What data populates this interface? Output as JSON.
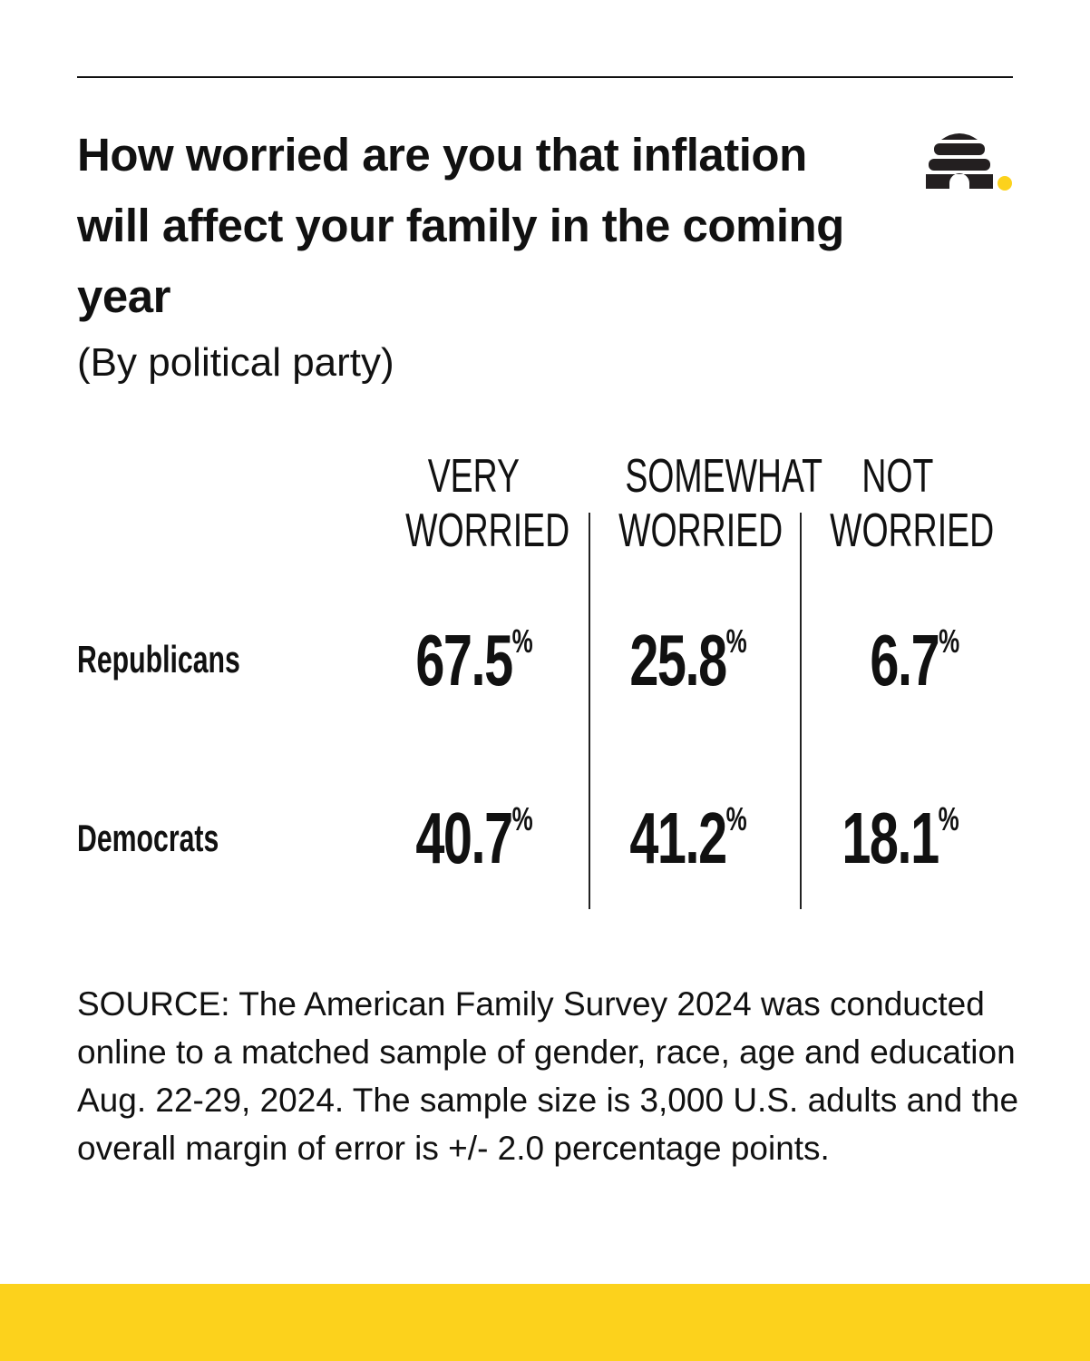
{
  "header": {
    "title": "How worried are you that inflation will affect your family in the coming year",
    "subtitle": "(By political party)",
    "logo": "beehive-icon"
  },
  "chart_data": {
    "type": "table",
    "title": "How worried are you that inflation will affect your family in the coming year",
    "subtitle": "(By political party)",
    "columns": [
      {
        "line1": "VERY",
        "line2": "WORRIED"
      },
      {
        "line1": "SOMEWHAT",
        "line2": "WORRIED"
      },
      {
        "line1": "NOT",
        "line2": "WORRIED"
      }
    ],
    "rows": [
      {
        "label": "Republicans",
        "values": [
          "67.5",
          "25.8",
          "6.7"
        ]
      },
      {
        "label": "Democrats",
        "values": [
          "40.7",
          "41.2",
          "18.1"
        ]
      }
    ],
    "unit": "%"
  },
  "source": "SOURCE: The American Family Survey 2024 was conducted online to a matched sample of gender, race, age and education Aug. 22-29, 2024. The sample size is 3,000 U.S. adults and the overall margin of error is +/- 2.0 percentage points.",
  "colors": {
    "accent": "#fcd21c",
    "text": "#111111"
  }
}
